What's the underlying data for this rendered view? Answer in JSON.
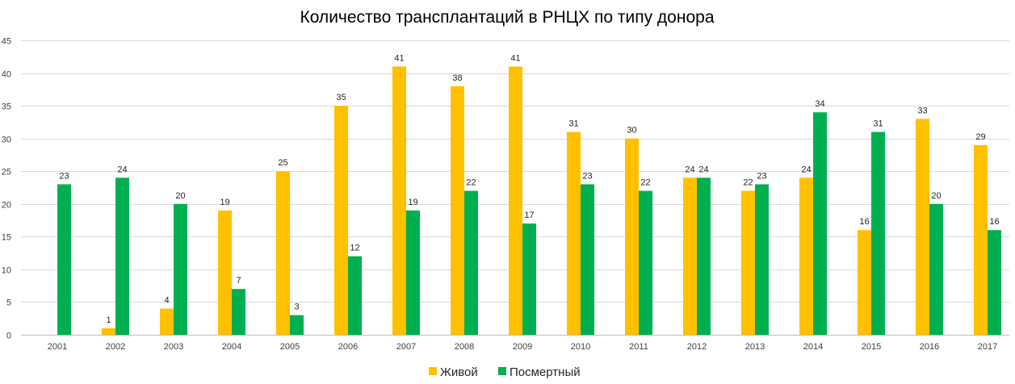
{
  "chart_data": {
    "type": "bar",
    "title": "Количество трансплантаций в РНЦХ по типу донора",
    "xlabel": "",
    "ylabel": "",
    "ylim": [
      0,
      45
    ],
    "yticks": [
      0,
      5,
      10,
      15,
      20,
      25,
      30,
      35,
      40,
      45
    ],
    "grid": true,
    "legend_position": "bottom",
    "categories": [
      "2001",
      "2002",
      "2003",
      "2004",
      "2005",
      "2006",
      "2007",
      "2008",
      "2009",
      "2010",
      "2011",
      "2012",
      "2013",
      "2014",
      "2015",
      "2016",
      "2017"
    ],
    "series": [
      {
        "name": "Живой",
        "color": "#FFC000",
        "values": [
          0,
          1,
          4,
          19,
          25,
          35,
          41,
          38,
          41,
          31,
          30,
          24,
          22,
          24,
          16,
          33,
          29
        ],
        "labels": [
          "",
          "1",
          "4",
          "19",
          "25",
          "35",
          "41",
          "38",
          "41",
          "31",
          "30",
          "24",
          "22",
          "24",
          "16",
          "33",
          "29"
        ]
      },
      {
        "name": "Посмертный",
        "color": "#00B050",
        "values": [
          23,
          24,
          20,
          7,
          3,
          12,
          19,
          22,
          17,
          23,
          22,
          24,
          23,
          34,
          31,
          20,
          16
        ],
        "labels": [
          "23",
          "24",
          "20",
          "7",
          "3",
          "12",
          "19",
          "22",
          "17",
          "23",
          "22",
          "24",
          "23",
          "34",
          "31",
          "20",
          "16"
        ]
      }
    ]
  }
}
